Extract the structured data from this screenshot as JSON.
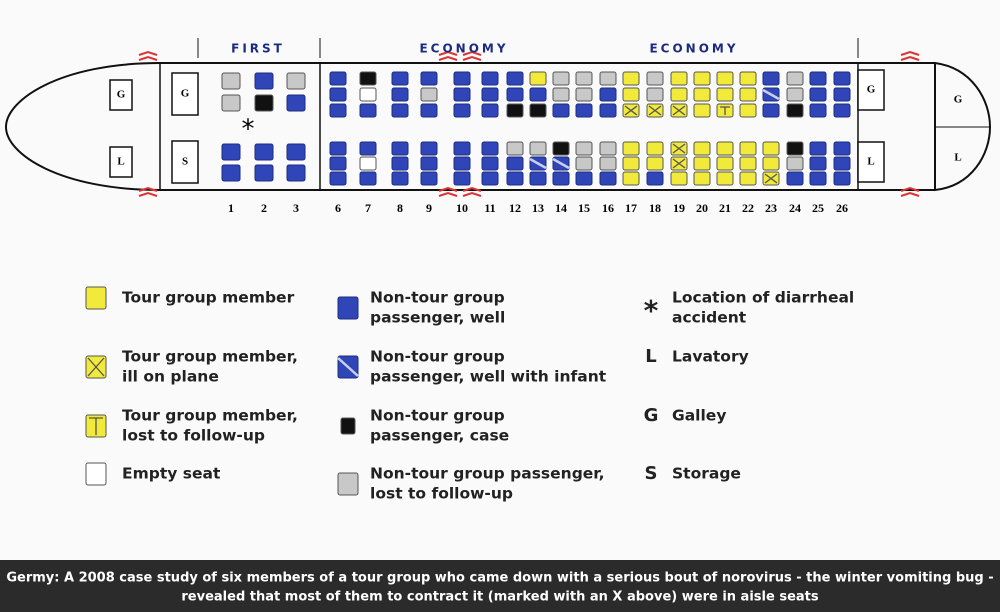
{
  "cabin": {
    "sections": [
      "FIRST",
      "ECONOMY",
      "ECONOMY"
    ],
    "rows": [
      "1",
      "2",
      "3",
      "6",
      "7",
      "8",
      "9",
      "10",
      "11",
      "12",
      "13",
      "14",
      "15",
      "16",
      "17",
      "18",
      "19",
      "20",
      "21",
      "22",
      "23",
      "24",
      "25",
      "26"
    ],
    "markers": [
      "G",
      "L",
      "G",
      "S",
      "G",
      "L",
      "G",
      "L"
    ],
    "accident_symbol": "*"
  },
  "legend": [
    {
      "lines": [
        "Tour group member"
      ]
    },
    {
      "lines": [
        "Tour group member,",
        "ill on plane"
      ]
    },
    {
      "lines": [
        "Tour group member,",
        "lost to follow-up"
      ]
    },
    {
      "lines": [
        "Empty seat"
      ]
    },
    {
      "lines": [
        "Non-tour group",
        "passenger, well"
      ]
    },
    {
      "lines": [
        "Non-tour group",
        "passenger, well with infant"
      ]
    },
    {
      "lines": [
        "Non-tour group",
        "passenger, case"
      ]
    },
    {
      "lines": [
        "Non-tour group passenger,",
        "lost to follow-up"
      ]
    },
    {
      "symbol": "*",
      "lines": [
        "Location of diarrheal",
        "accident"
      ]
    },
    {
      "symbol": "L",
      "lines": [
        "Lavatory"
      ]
    },
    {
      "symbol": "G",
      "lines": [
        "Galley"
      ]
    },
    {
      "symbol": "S",
      "lines": [
        "Storage"
      ]
    }
  ],
  "caption": [
    "Germy: A 2008 case study of six members of a tour group who came down with a serious bout of norovirus - the winter vomiting bug -",
    "revealed that most of them to contract it (marked with an X above) were in aisle seats"
  ]
}
